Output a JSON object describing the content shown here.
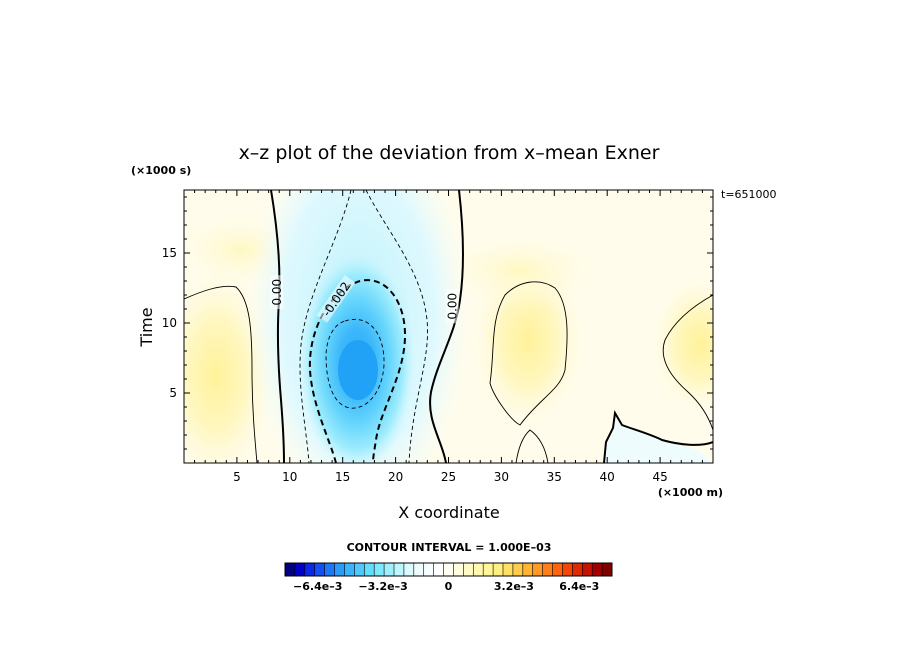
{
  "chart_data": {
    "type": "heatmap",
    "title": "x–z plot of the deviation from x–mean Exner",
    "xlabel": "X coordinate",
    "ylabel": "Time",
    "x_unit": "(×1000 m)",
    "y_unit": "(×1000 s)",
    "time_stamp": "t=651000",
    "xlim": [
      0,
      50
    ],
    "ylim": [
      0,
      19.5
    ],
    "x_ticks": [
      5,
      10,
      15,
      20,
      25,
      30,
      35,
      40,
      45
    ],
    "y_ticks": [
      5,
      10,
      15
    ],
    "contour_interval_text": "CONTOUR INTERVAL = 1.000E–03",
    "contour_labels": [
      {
        "text": "0.00",
        "x": 8.8,
        "y": 12.2
      },
      {
        "text": "-0.002",
        "x": 14.4,
        "y": 11.7
      },
      {
        "text": "0.00",
        "x": 25.4,
        "y": 11.2
      }
    ],
    "features": [
      {
        "kind": "minimum",
        "x": 16.2,
        "y": 7.0,
        "value": -0.004
      },
      {
        "kind": "maximum",
        "x": 33.0,
        "y": 9.5,
        "value": 0.0012
      },
      {
        "kind": "maximum",
        "x": 3.0,
        "y": 6.5,
        "value": 0.0012
      },
      {
        "kind": "maximum",
        "x": 48.0,
        "y": 9.0,
        "value": 0.001
      }
    ],
    "colorbar": {
      "range": [
        -0.008,
        0.008
      ],
      "labels": [
        "−6.4e–3",
        "−3.2e–3",
        "0",
        "3.2e–3",
        "6.4e–3"
      ],
      "label_values": [
        -0.0064,
        -0.0032,
        0,
        0.0032,
        0.0064
      ],
      "colors": [
        "#000080",
        "#0000c8",
        "#0a28e6",
        "#1450f0",
        "#1e78f5",
        "#2a9cf8",
        "#3cb4fa",
        "#50c8fb",
        "#64dcfc",
        "#7ee8fd",
        "#9ef0fd",
        "#bef6fd",
        "#dafafe",
        "#eefcfe",
        "#f8feff",
        "#ffffff",
        "#fffff4",
        "#fffde0",
        "#fffac8",
        "#fff8b0",
        "#fff599",
        "#ffee80",
        "#ffe066",
        "#ffcc4c",
        "#ffb433",
        "#ff9a26",
        "#ff7f1a",
        "#ff6410",
        "#f04808",
        "#dc2c04",
        "#c41400",
        "#a00000",
        "#800000"
      ]
    }
  }
}
